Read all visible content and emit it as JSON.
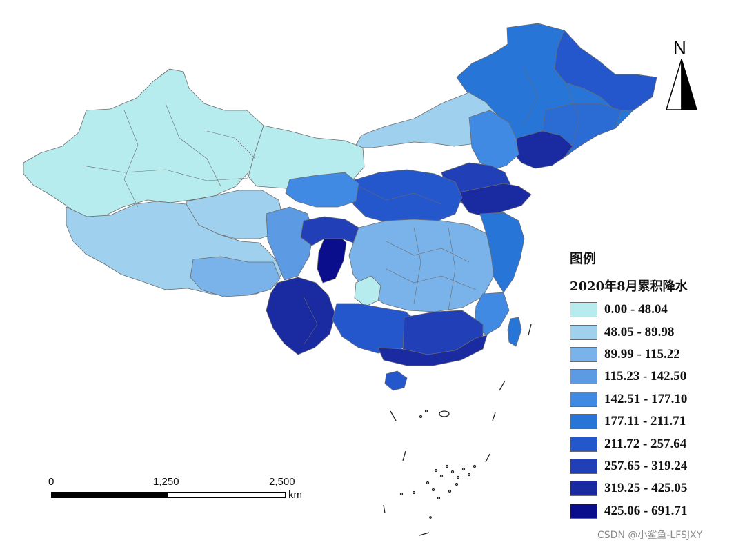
{
  "legend": {
    "title": "图例",
    "subtitle": "2020年8月累积降水",
    "classes": [
      {
        "label": "0.00 - 48.04",
        "color": "#b7ecef"
      },
      {
        "label": "48.05 - 89.98",
        "color": "#9fd1ef"
      },
      {
        "label": "89.99 - 115.22",
        "color": "#7ab3ea"
      },
      {
        "label": "115.23 - 142.50",
        "color": "#5c9ae4"
      },
      {
        "label": "142.51 - 177.10",
        "color": "#418ae4"
      },
      {
        "label": "177.11 - 211.71",
        "color": "#2875d8"
      },
      {
        "label": "211.72 - 257.64",
        "color": "#2456cc"
      },
      {
        "label": "257.65 - 319.24",
        "color": "#2140b8"
      },
      {
        "label": "319.25 - 425.05",
        "color": "#1a2aa0"
      },
      {
        "label": "425.06 - 691.71",
        "color": "#0a0e8c"
      }
    ]
  },
  "scale_bar": {
    "ticks": [
      "0",
      "1,250",
      "2,500"
    ],
    "unit": "km"
  },
  "north_arrow": {
    "label": "N"
  },
  "watermark": "CSDN @小鲨鱼-LFSJXY",
  "colors": {
    "boundary": "#6b6b6b",
    "background": "#ffffff"
  }
}
